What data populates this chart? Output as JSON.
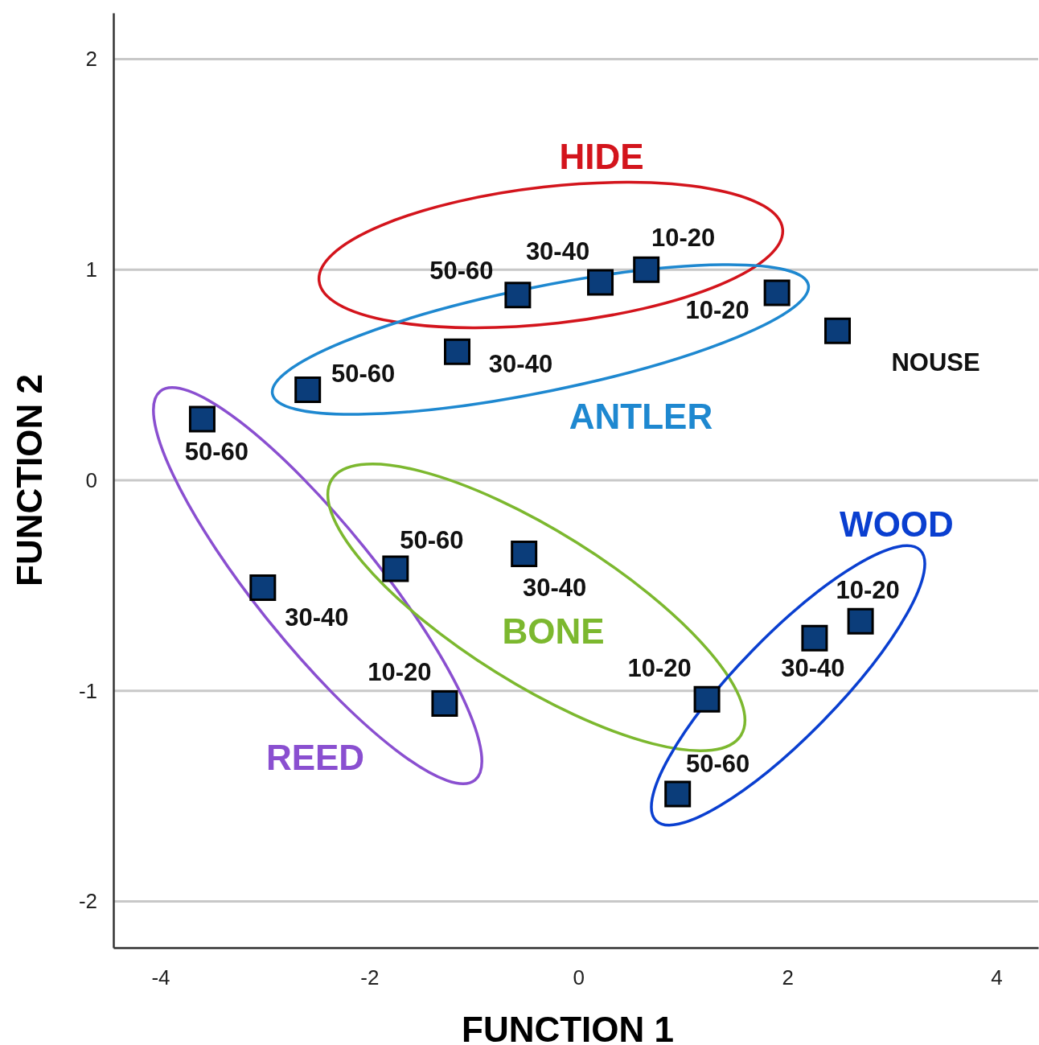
{
  "chart_data": {
    "type": "scatter",
    "xlabel": "FUNCTION 1",
    "ylabel": "FUNCTION 2",
    "xlim": [
      -4.45,
      4.4
    ],
    "ylim": [
      -2.22,
      2.22
    ],
    "xticks": [
      -4,
      -2,
      0,
      2,
      4
    ],
    "yticks": [
      -2,
      -1,
      0,
      1,
      2
    ],
    "grid": "y",
    "marker": "square",
    "series": [
      {
        "color": "#0b3d7a",
        "value_labels": [
          "50-60",
          "30-40",
          "10-20",
          "10-20",
          "NOUSE",
          "30-40",
          "50-60",
          "50-60",
          "30-40",
          "10-20",
          "50-60",
          "30-40",
          "10-20",
          "50-60",
          "30-40",
          "10-20"
        ],
        "x": [
          -0.58,
          0.21,
          0.65,
          1.9,
          2.48,
          -1.16,
          -2.59,
          -3.6,
          -3.02,
          -1.28,
          -1.75,
          -0.52,
          1.23,
          0.95,
          2.26,
          2.7
        ],
        "values": [
          0.88,
          0.94,
          1.0,
          0.89,
          0.71,
          0.61,
          0.43,
          0.29,
          -0.51,
          -1.06,
          -0.42,
          -0.35,
          -1.04,
          -1.49,
          -0.75,
          -0.67
        ]
      }
    ],
    "annotations": [
      "HIDE",
      "ANTLER",
      "REED",
      "BONE",
      "WOOD"
    ]
  }
}
